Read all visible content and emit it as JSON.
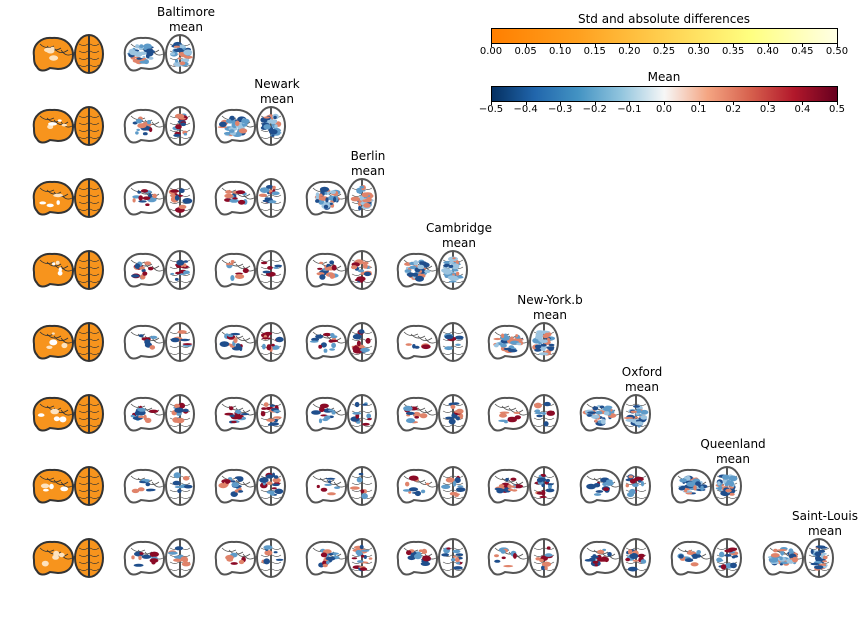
{
  "figure": {
    "sites": [
      "Baltimore",
      "Newark",
      "Berlin",
      "Cambridge",
      "New-York.b",
      "Oxford",
      "Queenland",
      "Saint-Louis"
    ],
    "mean_label": "mean",
    "colorbar_std": {
      "title": "Std and absolute differences",
      "ticks": [
        "0.00",
        "0.05",
        "0.10",
        "0.15",
        "0.20",
        "0.25",
        "0.30",
        "0.35",
        "0.40",
        "0.45",
        "0.50"
      ],
      "colors": [
        "#ff7f00",
        "#ffa01f",
        "#ffd050",
        "#ffff80",
        "#ffffe5"
      ]
    },
    "colorbar_mean": {
      "title": "Mean",
      "ticks": [
        "−0.5",
        "−0.4",
        "−0.3",
        "−0.2",
        "−0.1",
        "0.0",
        "0.1",
        "0.2",
        "0.3",
        "0.4",
        "0.5"
      ],
      "colors": [
        "#053061",
        "#2166ac",
        "#4393c3",
        "#92c5de",
        "#f7f7f7",
        "#f4a582",
        "#d6604d",
        "#b2182b",
        "#67001f"
      ]
    },
    "colors": {
      "std_fill": "#f7941d",
      "brain_outline": "#555555",
      "blue_dark": "#1f4e8c",
      "blue_light": "#5e9bc9",
      "red_light": "#e0836a",
      "red_dark": "#8b0a26"
    }
  }
}
